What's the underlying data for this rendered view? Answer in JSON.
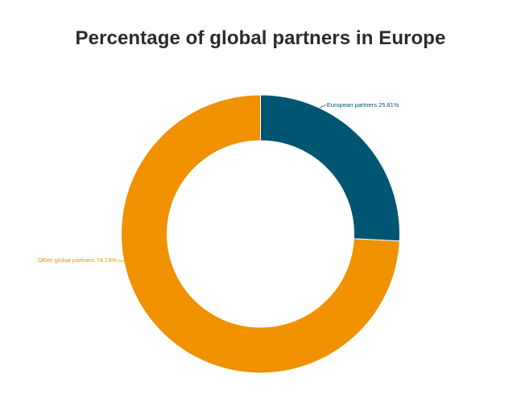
{
  "chart_data": {
    "type": "pie",
    "variant": "donut",
    "title": "Percentage of global partners in Europe",
    "slices": [
      {
        "name": "European partners",
        "value": 25.81,
        "label": "European partners 25.81%",
        "color": "#005573"
      },
      {
        "name": "Other global partners",
        "value": 74.19,
        "label": "Other global partners 74.19%",
        "color": "#f09100"
      }
    ],
    "legend": "none"
  }
}
